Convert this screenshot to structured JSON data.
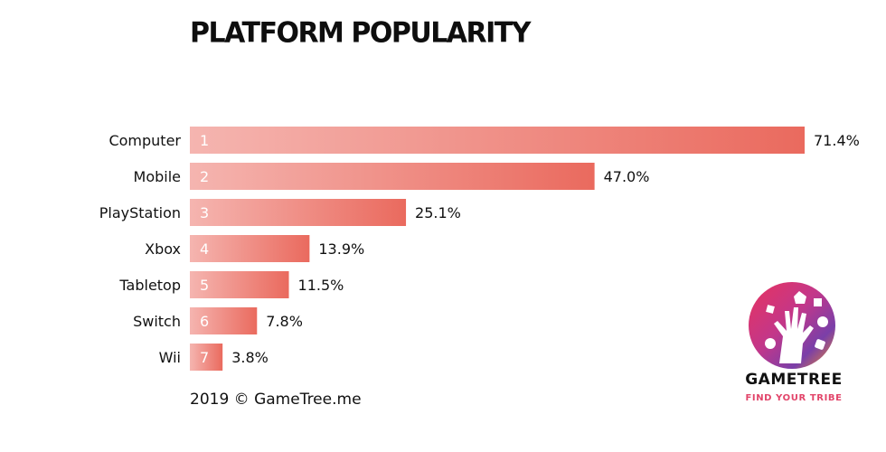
{
  "chart_data": {
    "type": "bar",
    "orientation": "horizontal",
    "title": "PLATFORM POPULARITY",
    "categories": [
      "Computer",
      "Mobile",
      "PlayStation",
      "Xbox",
      "Tabletop",
      "Switch",
      "Wii"
    ],
    "ranks": [
      "1",
      "2",
      "3",
      "4",
      "5",
      "6",
      "7"
    ],
    "values": [
      71.4,
      47.0,
      25.1,
      13.9,
      11.5,
      7.8,
      3.8
    ],
    "value_labels": [
      "71.4%",
      "47.0%",
      "25.1%",
      "13.9%",
      "11.5%",
      "7.8%",
      "3.8%"
    ],
    "unit": "%",
    "xlim": [
      0,
      71.4
    ],
    "grid": false,
    "bar_gradient": [
      "#f5b5b0",
      "#ea6a5e"
    ]
  },
  "footer": {
    "credit": "2019 © GameTree.me"
  },
  "logo": {
    "name": "GAMETREE",
    "tagline": "FIND YOUR TRIBE"
  }
}
